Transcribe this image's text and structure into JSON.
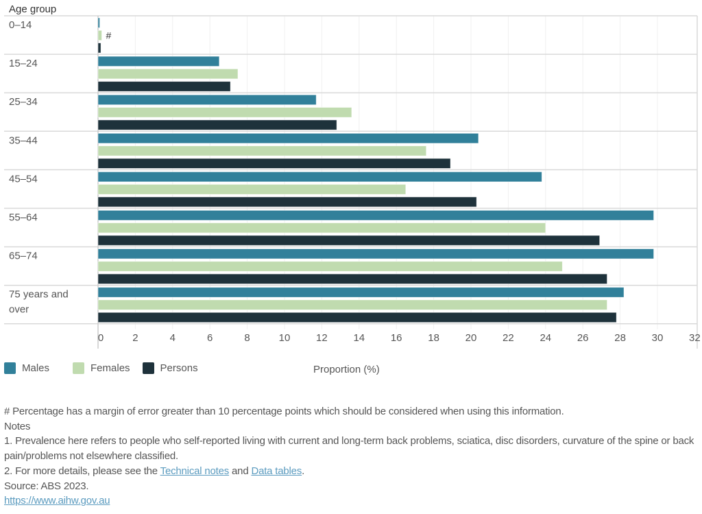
{
  "chart_data": {
    "type": "bar",
    "orientation": "horizontal",
    "title": "",
    "ylabel": "Age group",
    "xlabel": "Proportion (%)",
    "xlim": [
      0,
      32
    ],
    "xticks": [
      "0",
      "2",
      "4",
      "6",
      "8",
      "10",
      "12",
      "14",
      "16",
      "18",
      "20",
      "22",
      "24",
      "26",
      "28",
      "30",
      "32"
    ],
    "grid": true,
    "categories": [
      "0–14",
      "15–24",
      "25–34",
      "35–44",
      "45–54",
      "55–64",
      "65–74",
      "75 years and over"
    ],
    "category_lines": [
      [
        "0–14"
      ],
      [
        "15–24"
      ],
      [
        "25–34"
      ],
      [
        "35–44"
      ],
      [
        "45–54"
      ],
      [
        "55–64"
      ],
      [
        "65–74"
      ],
      [
        "75 years and",
        "over"
      ]
    ],
    "series": [
      {
        "name": "Males",
        "color": "#31809a",
        "values": [
          0.05,
          6.5,
          11.7,
          20.4,
          23.8,
          29.8,
          29.8,
          28.2
        ]
      },
      {
        "name": "Females",
        "color": "#c0dbaf",
        "values": [
          0.2,
          7.5,
          13.6,
          17.6,
          16.5,
          24.0,
          24.9,
          27.3
        ]
      },
      {
        "name": "Persons",
        "color": "#1e323b",
        "values": [
          0.15,
          7.1,
          12.8,
          18.9,
          20.3,
          26.9,
          27.3,
          27.8
        ]
      }
    ],
    "annotations": [
      {
        "category": "0–14",
        "series": "Females",
        "text": "#"
      }
    ],
    "legend": "bottom-left"
  },
  "notes": {
    "hash_note": "# Percentage has a margin of error greater than 10 percentage points which should be considered when using this information.",
    "heading": "Notes",
    "note1": "1. Prevalence here refers to people who self-reported living with current and long-term back problems, sciatica, disc disorders, curvature of the spine or back pain/problems not elsewhere classified.",
    "note2_prefix": "2. For more details, please see the ",
    "technical_notes_link": "Technical notes",
    "note2_and": " and ",
    "data_tables_link": "Data tables",
    "note2_suffix": ".",
    "source": "Source: ABS 2023.",
    "url": "https://www.aihw.gov.au"
  }
}
